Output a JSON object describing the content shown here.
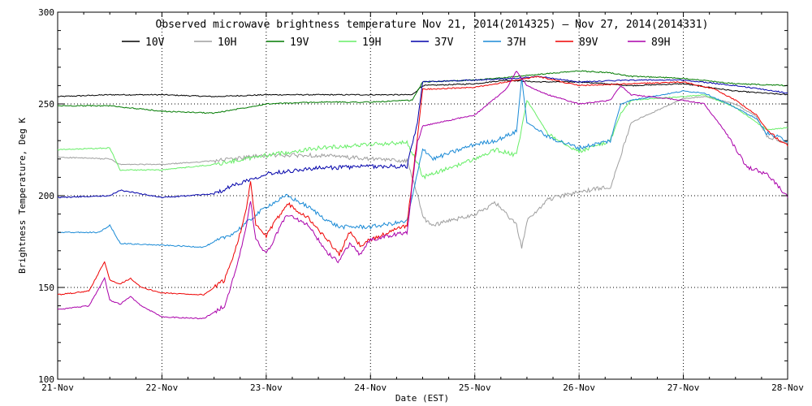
{
  "chart_data": {
    "type": "line",
    "title": "Observed microwave brightness temperature Nov 21, 2014(2014325) — Nov 27, 2014(2014331)",
    "xlabel": "Date (EST)",
    "ylabel": "Brightness Temperature, Deg K",
    "xlim": [
      0,
      7
    ],
    "ylim": [
      100,
      300
    ],
    "x_ticks": [
      {
        "value": 0,
        "label": "21-Nov"
      },
      {
        "value": 1,
        "label": "22-Nov"
      },
      {
        "value": 2,
        "label": "23-Nov"
      },
      {
        "value": 3,
        "label": "24-Nov"
      },
      {
        "value": 4,
        "label": "25-Nov"
      },
      {
        "value": 5,
        "label": "26-Nov"
      },
      {
        "value": 6,
        "label": "27-Nov"
      },
      {
        "value": 7,
        "label": "28-Nov"
      }
    ],
    "y_ticks": [
      100,
      150,
      200,
      250,
      300
    ],
    "grid": true,
    "legend_position": "top",
    "series": [
      {
        "name": "10V",
        "color": "#000000",
        "points": [
          [
            0,
            254
          ],
          [
            0.5,
            255
          ],
          [
            1,
            255
          ],
          [
            1.5,
            254
          ],
          [
            2,
            255
          ],
          [
            2.5,
            255
          ],
          [
            3,
            255
          ],
          [
            3.4,
            255
          ],
          [
            3.5,
            260
          ],
          [
            4,
            261
          ],
          [
            4.3,
            263
          ],
          [
            4.6,
            262
          ],
          [
            5,
            262
          ],
          [
            5.5,
            260
          ],
          [
            6,
            261
          ],
          [
            6.5,
            257
          ],
          [
            7,
            255
          ]
        ]
      },
      {
        "name": "10H",
        "color": "#9e9e9e",
        "points": [
          [
            0,
            221
          ],
          [
            0.5,
            220
          ],
          [
            0.6,
            217
          ],
          [
            1,
            217
          ],
          [
            1.5,
            219
          ],
          [
            2,
            222
          ],
          [
            2.5,
            222
          ],
          [
            3,
            220
          ],
          [
            3.35,
            219
          ],
          [
            3.45,
            201
          ],
          [
            3.5,
            188
          ],
          [
            3.6,
            184
          ],
          [
            4,
            190
          ],
          [
            4.2,
            196
          ],
          [
            4.4,
            184
          ],
          [
            4.45,
            172
          ],
          [
            4.5,
            186
          ],
          [
            4.7,
            198
          ],
          [
            5,
            202
          ],
          [
            5.3,
            205
          ],
          [
            5.4,
            222
          ],
          [
            5.5,
            240
          ],
          [
            6,
            253
          ],
          [
            6.2,
            254
          ],
          [
            6.5,
            250
          ],
          [
            6.7,
            243
          ],
          [
            6.8,
            232
          ],
          [
            7,
            229
          ]
        ]
      },
      {
        "name": "19V",
        "color": "#007a00",
        "points": [
          [
            0,
            249
          ],
          [
            0.5,
            249
          ],
          [
            1,
            246
          ],
          [
            1.5,
            245
          ],
          [
            2,
            250
          ],
          [
            2.5,
            251
          ],
          [
            3,
            251
          ],
          [
            3.4,
            252
          ],
          [
            3.5,
            262
          ],
          [
            4,
            263
          ],
          [
            4.4,
            265
          ],
          [
            4.6,
            266
          ],
          [
            5,
            268
          ],
          [
            5.3,
            267
          ],
          [
            5.5,
            265
          ],
          [
            6,
            264
          ],
          [
            6.5,
            261
          ],
          [
            7,
            260
          ]
        ]
      },
      {
        "name": "19H",
        "color": "#66ee66",
        "points": [
          [
            0,
            225
          ],
          [
            0.5,
            226
          ],
          [
            0.6,
            214
          ],
          [
            1,
            214
          ],
          [
            1.5,
            217
          ],
          [
            2,
            222
          ],
          [
            2.5,
            226
          ],
          [
            3,
            228
          ],
          [
            3.35,
            229
          ],
          [
            3.45,
            218
          ],
          [
            3.5,
            210
          ],
          [
            3.6,
            212
          ],
          [
            4,
            220
          ],
          [
            4.2,
            225
          ],
          [
            4.4,
            222
          ],
          [
            4.5,
            252
          ],
          [
            4.7,
            234
          ],
          [
            5,
            224
          ],
          [
            5.3,
            230
          ],
          [
            5.4,
            245
          ],
          [
            5.5,
            252
          ],
          [
            6,
            254
          ],
          [
            6.2,
            255
          ],
          [
            6.5,
            248
          ],
          [
            6.7,
            240
          ],
          [
            6.8,
            236
          ],
          [
            7,
            237
          ]
        ]
      },
      {
        "name": "37V",
        "color": "#0000aa",
        "points": [
          [
            0,
            199
          ],
          [
            0.5,
            200
          ],
          [
            0.6,
            203
          ],
          [
            1,
            199
          ],
          [
            1.5,
            201
          ],
          [
            1.7,
            206
          ],
          [
            2,
            212
          ],
          [
            2.3,
            214
          ],
          [
            2.5,
            215
          ],
          [
            3,
            216
          ],
          [
            3.35,
            216
          ],
          [
            3.45,
            240
          ],
          [
            3.5,
            262
          ],
          [
            4,
            263
          ],
          [
            4.4,
            264
          ],
          [
            4.6,
            265
          ],
          [
            5,
            262
          ],
          [
            5.5,
            263
          ],
          [
            6,
            263
          ],
          [
            6.5,
            260
          ],
          [
            7,
            256
          ]
        ]
      },
      {
        "name": "37H",
        "color": "#1a8ad6",
        "points": [
          [
            0,
            180
          ],
          [
            0.4,
            180
          ],
          [
            0.5,
            184
          ],
          [
            0.6,
            174
          ],
          [
            1,
            173
          ],
          [
            1.4,
            172
          ],
          [
            1.7,
            180
          ],
          [
            2,
            194
          ],
          [
            2.2,
            200
          ],
          [
            2.4,
            194
          ],
          [
            2.6,
            186
          ],
          [
            2.7,
            183
          ],
          [
            3,
            183
          ],
          [
            3.35,
            186
          ],
          [
            3.45,
            212
          ],
          [
            3.5,
            226
          ],
          [
            3.6,
            220
          ],
          [
            4,
            228
          ],
          [
            4.2,
            230
          ],
          [
            4.4,
            235
          ],
          [
            4.45,
            264
          ],
          [
            4.5,
            240
          ],
          [
            4.7,
            232
          ],
          [
            5,
            226
          ],
          [
            5.3,
            230
          ],
          [
            5.4,
            250
          ],
          [
            5.5,
            252
          ],
          [
            6,
            257
          ],
          [
            6.2,
            256
          ],
          [
            6.5,
            248
          ],
          [
            6.7,
            242
          ],
          [
            6.8,
            234
          ],
          [
            7,
            230
          ]
        ]
      },
      {
        "name": "89V",
        "color": "#ee0000",
        "points": [
          [
            0,
            146
          ],
          [
            0.3,
            148
          ],
          [
            0.45,
            164
          ],
          [
            0.5,
            154
          ],
          [
            0.6,
            152
          ],
          [
            0.7,
            155
          ],
          [
            0.8,
            150
          ],
          [
            1,
            147
          ],
          [
            1.4,
            146
          ],
          [
            1.6,
            154
          ],
          [
            1.7,
            170
          ],
          [
            1.8,
            190
          ],
          [
            1.85,
            207
          ],
          [
            1.9,
            184
          ],
          [
            2,
            178
          ],
          [
            2.2,
            196
          ],
          [
            2.4,
            188
          ],
          [
            2.6,
            175
          ],
          [
            2.7,
            168
          ],
          [
            2.8,
            180
          ],
          [
            2.9,
            173
          ],
          [
            3,
            176
          ],
          [
            3.35,
            184
          ],
          [
            3.45,
            232
          ],
          [
            3.5,
            258
          ],
          [
            4,
            259
          ],
          [
            4.4,
            263
          ],
          [
            4.6,
            265
          ],
          [
            5,
            260
          ],
          [
            5.5,
            261
          ],
          [
            6,
            262
          ],
          [
            6.3,
            258
          ],
          [
            6.5,
            252
          ],
          [
            6.7,
            244
          ],
          [
            6.8,
            236
          ],
          [
            7,
            227
          ]
        ]
      },
      {
        "name": "89H",
        "color": "#aa00aa",
        "points": [
          [
            0,
            138
          ],
          [
            0.3,
            140
          ],
          [
            0.45,
            155
          ],
          [
            0.5,
            143
          ],
          [
            0.6,
            141
          ],
          [
            0.7,
            145
          ],
          [
            0.8,
            140
          ],
          [
            1,
            134
          ],
          [
            1.4,
            133
          ],
          [
            1.6,
            140
          ],
          [
            1.7,
            158
          ],
          [
            1.8,
            180
          ],
          [
            1.85,
            197
          ],
          [
            1.9,
            176
          ],
          [
            2,
            168
          ],
          [
            2.2,
            190
          ],
          [
            2.4,
            184
          ],
          [
            2.6,
            168
          ],
          [
            2.7,
            164
          ],
          [
            2.8,
            174
          ],
          [
            2.9,
            168
          ],
          [
            3,
            176
          ],
          [
            3.35,
            180
          ],
          [
            3.45,
            230
          ],
          [
            3.5,
            238
          ],
          [
            4,
            244
          ],
          [
            4.3,
            258
          ],
          [
            4.4,
            268
          ],
          [
            4.5,
            260
          ],
          [
            4.7,
            255
          ],
          [
            5,
            250
          ],
          [
            5.3,
            252
          ],
          [
            5.4,
            260
          ],
          [
            5.5,
            255
          ],
          [
            6,
            252
          ],
          [
            6.2,
            250
          ],
          [
            6.4,
            235
          ],
          [
            6.5,
            226
          ],
          [
            6.6,
            216
          ],
          [
            6.8,
            212
          ],
          [
            7,
            199
          ]
        ]
      }
    ]
  }
}
